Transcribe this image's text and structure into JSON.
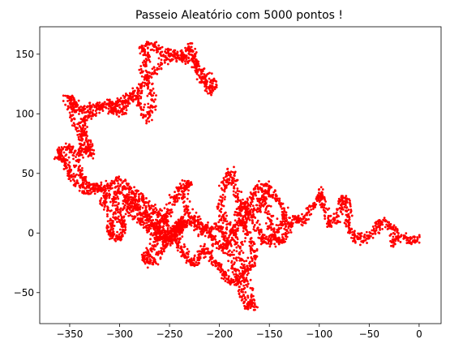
{
  "chart_data": {
    "type": "scatter",
    "title": "Passeio Aleatório com 5000 pontos !",
    "xlabel": "",
    "ylabel": "",
    "xlim": [
      -380,
      22
    ],
    "ylim": [
      -76,
      173
    ],
    "x_ticks": [
      -350,
      -300,
      -250,
      -200,
      -150,
      -100,
      -50,
      0
    ],
    "y_ticks": [
      -50,
      0,
      50,
      100,
      150
    ],
    "grid": false,
    "legend": "none",
    "marker_color": "#ff0000",
    "num_points": 5000,
    "series": [
      {
        "path_points": [
          [
            0,
            -5
          ],
          [
            -8,
            -6
          ],
          [
            -18,
            -3
          ],
          [
            -28,
            -8
          ],
          [
            -24,
            4
          ],
          [
            -36,
            10
          ],
          [
            -42,
            6
          ],
          [
            -50,
            -3
          ],
          [
            -60,
            -6
          ],
          [
            -66,
            -2
          ],
          [
            -72,
            8
          ],
          [
            -70,
            20
          ],
          [
            -74,
            30
          ],
          [
            -78,
            25
          ],
          [
            -82,
            12
          ],
          [
            -90,
            8
          ],
          [
            -95,
            22
          ],
          [
            -98,
            35
          ],
          [
            -100,
            28
          ],
          [
            -110,
            20
          ],
          [
            -116,
            10
          ],
          [
            -124,
            12
          ],
          [
            -130,
            8
          ],
          [
            -134,
            -3
          ],
          [
            -142,
            -8
          ],
          [
            -148,
            0
          ],
          [
            -150,
            15
          ],
          [
            -158,
            30
          ],
          [
            -150,
            40
          ],
          [
            -162,
            38
          ],
          [
            -168,
            28
          ],
          [
            -174,
            20
          ],
          [
            -182,
            28
          ],
          [
            -186,
            45
          ],
          [
            -190,
            52
          ],
          [
            -196,
            40
          ],
          [
            -200,
            22
          ],
          [
            -194,
            10
          ],
          [
            -186,
            0
          ],
          [
            -180,
            -10
          ],
          [
            -175,
            -30
          ],
          [
            -170,
            -50
          ],
          [
            -165,
            -60
          ],
          [
            -172,
            -62
          ],
          [
            -178,
            -50
          ],
          [
            -182,
            -35
          ],
          [
            -188,
            -20
          ],
          [
            -194,
            -5
          ],
          [
            -200,
            5
          ],
          [
            -212,
            5
          ],
          [
            -218,
            0
          ],
          [
            -226,
            8
          ],
          [
            -232,
            20
          ],
          [
            -236,
            35
          ],
          [
            -230,
            42
          ],
          [
            -240,
            38
          ],
          [
            -246,
            28
          ],
          [
            -252,
            18
          ],
          [
            -258,
            10
          ],
          [
            -262,
            -5
          ],
          [
            -270,
            -15
          ],
          [
            -276,
            -22
          ],
          [
            -268,
            -26
          ],
          [
            -260,
            -18
          ],
          [
            -252,
            -8
          ],
          [
            -258,
            2
          ],
          [
            -270,
            10
          ],
          [
            -282,
            18
          ],
          [
            -290,
            28
          ],
          [
            -300,
            36
          ],
          [
            -306,
            28
          ],
          [
            -300,
            14
          ],
          [
            -296,
            4
          ],
          [
            -300,
            -5
          ],
          [
            -306,
            -2
          ],
          [
            -312,
            4
          ],
          [
            -304,
            12
          ],
          [
            -318,
            24
          ],
          [
            -312,
            32
          ],
          [
            -322,
            38
          ],
          [
            -332,
            35
          ],
          [
            -340,
            40
          ],
          [
            -348,
            46
          ],
          [
            -352,
            55
          ],
          [
            -356,
            62
          ],
          [
            -362,
            65
          ],
          [
            -356,
            72
          ],
          [
            -344,
            68
          ],
          [
            -332,
            72
          ],
          [
            -328,
            66
          ],
          [
            -334,
            80
          ],
          [
            -338,
            92
          ],
          [
            -332,
            98
          ],
          [
            -322,
            104
          ],
          [
            -310,
            110
          ],
          [
            -300,
            108
          ],
          [
            -294,
            112
          ],
          [
            -284,
            118
          ],
          [
            -278,
            105
          ],
          [
            -272,
            95
          ],
          [
            -266,
            108
          ],
          [
            -270,
            124
          ],
          [
            -276,
            135
          ],
          [
            -272,
            148
          ],
          [
            -278,
            156
          ],
          [
            -266,
            158
          ],
          [
            -258,
            152
          ],
          [
            -248,
            150
          ],
          [
            -238,
            145
          ],
          [
            -230,
            156
          ],
          [
            -226,
            150
          ],
          [
            -222,
            140
          ],
          [
            -214,
            132
          ],
          [
            -206,
            125
          ],
          [
            -210,
            118
          ],
          [
            -218,
            130
          ],
          [
            -224,
            142
          ],
          [
            -236,
            150
          ],
          [
            -248,
            148
          ],
          [
            -260,
            140
          ],
          [
            -272,
            130
          ],
          [
            -282,
            118
          ],
          [
            -292,
            108
          ],
          [
            -300,
            100
          ],
          [
            -308,
            104
          ],
          [
            -318,
            108
          ],
          [
            -330,
            105
          ],
          [
            -340,
            102
          ],
          [
            -346,
            110
          ],
          [
            -352,
            114
          ],
          [
            -348,
            100
          ],
          [
            -340,
            86
          ],
          [
            -336,
            72
          ],
          [
            -344,
            60
          ],
          [
            -338,
            48
          ],
          [
            -330,
            40
          ],
          [
            -320,
            36
          ],
          [
            -310,
            40
          ],
          [
            -300,
            44
          ],
          [
            -290,
            38
          ],
          [
            -280,
            30
          ],
          [
            -272,
            24
          ],
          [
            -264,
            18
          ],
          [
            -256,
            12
          ],
          [
            -250,
            4
          ],
          [
            -244,
            -4
          ],
          [
            -238,
            -12
          ],
          [
            -232,
            -20
          ],
          [
            -226,
            -26
          ],
          [
            -220,
            -20
          ],
          [
            -214,
            -12
          ],
          [
            -208,
            -22
          ],
          [
            -200,
            -28
          ],
          [
            -194,
            -38
          ],
          [
            -186,
            -42
          ],
          [
            -178,
            -36
          ],
          [
            -170,
            -28
          ],
          [
            -164,
            -18
          ],
          [
            -170,
            -6
          ],
          [
            -176,
            6
          ],
          [
            -182,
            16
          ],
          [
            -176,
            22
          ],
          [
            -168,
            14
          ],
          [
            -160,
            2
          ],
          [
            -154,
            -8
          ],
          [
            -146,
            -4
          ],
          [
            -140,
            6
          ],
          [
            -134,
            14
          ],
          [
            -140,
            26
          ],
          [
            -148,
            34
          ],
          [
            -158,
            26
          ],
          [
            -166,
            18
          ],
          [
            -176,
            10
          ],
          [
            -184,
            2
          ],
          [
            -192,
            -8
          ],
          [
            -198,
            -14
          ],
          [
            -206,
            -6
          ],
          [
            -214,
            4
          ],
          [
            -224,
            14
          ],
          [
            -232,
            8
          ],
          [
            -240,
            0
          ],
          [
            -248,
            -8
          ],
          [
            -256,
            -2
          ],
          [
            -264,
            6
          ],
          [
            -272,
            14
          ],
          [
            -280,
            22
          ],
          [
            -288,
            30
          ],
          [
            -296,
            22
          ],
          [
            -286,
            14
          ],
          [
            -276,
            8
          ],
          [
            -266,
            0
          ],
          [
            -256,
            -6
          ],
          [
            -246,
            0
          ],
          [
            -236,
            10
          ]
        ]
      }
    ]
  }
}
